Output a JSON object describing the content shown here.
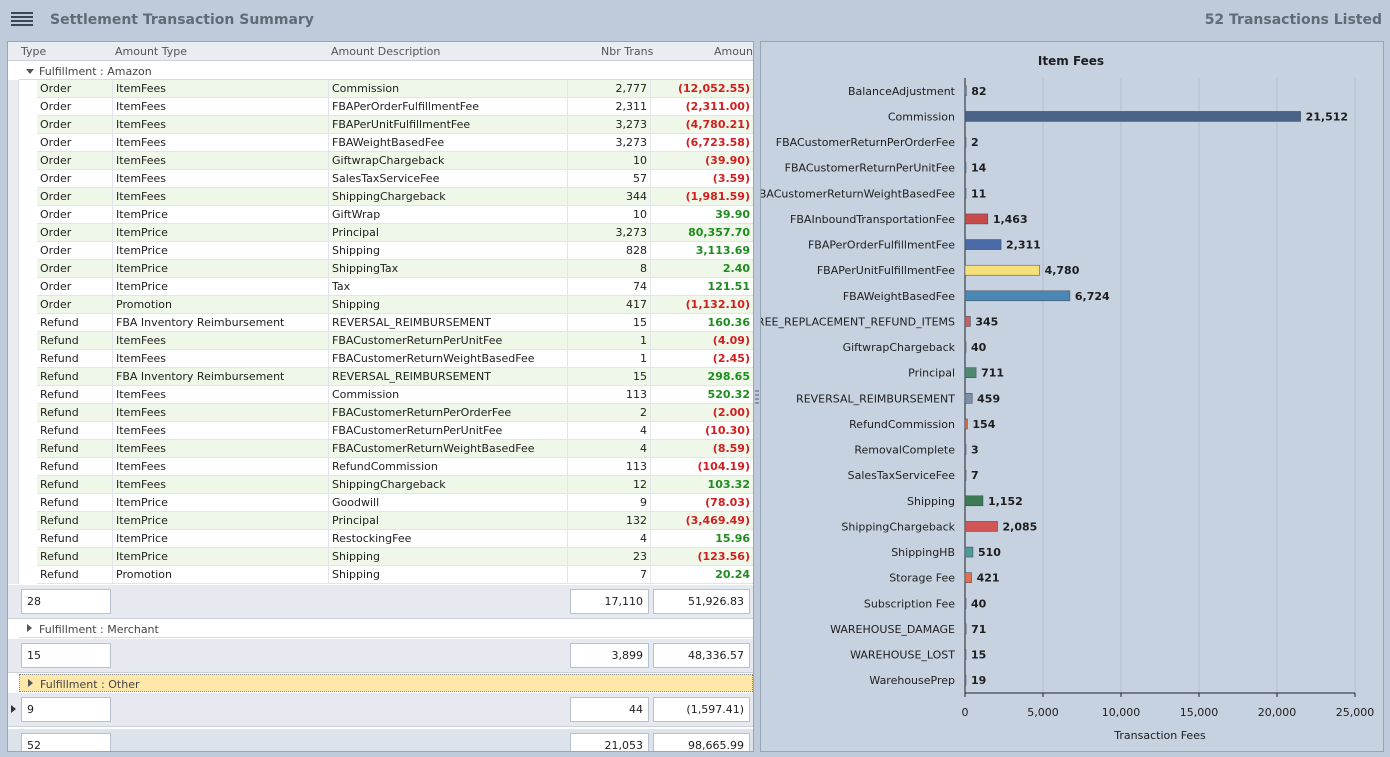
{
  "app": {
    "title": "Settlement Transaction Summary",
    "transactions_listed": "52 Transactions Listed"
  },
  "grid": {
    "columns": {
      "type": "Type",
      "amount_type": "Amount Type",
      "amount_description": "Amount Description",
      "nbr_trans": "Nbr Trans",
      "amount": "Amount"
    },
    "groups": [
      {
        "label": "Fulfillment : Amazon",
        "expanded": true,
        "rows": [
          {
            "type": "Order",
            "amount_type": "ItemFees",
            "description": "Commission",
            "nbr": "2,777",
            "amount": "(12,052.55)"
          },
          {
            "type": "Order",
            "amount_type": "ItemFees",
            "description": "FBAPerOrderFulfillmentFee",
            "nbr": "2,311",
            "amount": "(2,311.00)"
          },
          {
            "type": "Order",
            "amount_type": "ItemFees",
            "description": "FBAPerUnitFulfillmentFee",
            "nbr": "3,273",
            "amount": "(4,780.21)"
          },
          {
            "type": "Order",
            "amount_type": "ItemFees",
            "description": "FBAWeightBasedFee",
            "nbr": "3,273",
            "amount": "(6,723.58)"
          },
          {
            "type": "Order",
            "amount_type": "ItemFees",
            "description": "GiftwrapChargeback",
            "nbr": "10",
            "amount": "(39.90)"
          },
          {
            "type": "Order",
            "amount_type": "ItemFees",
            "description": "SalesTaxServiceFee",
            "nbr": "57",
            "amount": "(3.59)"
          },
          {
            "type": "Order",
            "amount_type": "ItemFees",
            "description": "ShippingChargeback",
            "nbr": "344",
            "amount": "(1,981.59)"
          },
          {
            "type": "Order",
            "amount_type": "ItemPrice",
            "description": "GiftWrap",
            "nbr": "10",
            "amount": "39.90"
          },
          {
            "type": "Order",
            "amount_type": "ItemPrice",
            "description": "Principal",
            "nbr": "3,273",
            "amount": "80,357.70"
          },
          {
            "type": "Order",
            "amount_type": "ItemPrice",
            "description": "Shipping",
            "nbr": "828",
            "amount": "3,113.69"
          },
          {
            "type": "Order",
            "amount_type": "ItemPrice",
            "description": "ShippingTax",
            "nbr": "8",
            "amount": "2.40"
          },
          {
            "type": "Order",
            "amount_type": "ItemPrice",
            "description": "Tax",
            "nbr": "74",
            "amount": "121.51"
          },
          {
            "type": "Order",
            "amount_type": "Promotion",
            "description": "Shipping",
            "nbr": "417",
            "amount": "(1,132.10)"
          },
          {
            "type": "Refund",
            "amount_type": "FBA Inventory Reimbursement",
            "description": "REVERSAL_REIMBURSEMENT",
            "nbr": "15",
            "amount": "160.36"
          },
          {
            "type": "Refund",
            "amount_type": "ItemFees",
            "description": "FBACustomerReturnPerUnitFee",
            "nbr": "1",
            "amount": "(4.09)"
          },
          {
            "type": "Refund",
            "amount_type": "ItemFees",
            "description": "FBACustomerReturnWeightBasedFee",
            "nbr": "1",
            "amount": "(2.45)"
          },
          {
            "type": "Refund",
            "amount_type": "FBA Inventory Reimbursement",
            "description": "REVERSAL_REIMBURSEMENT",
            "nbr": "15",
            "amount": "298.65"
          },
          {
            "type": "Refund",
            "amount_type": "ItemFees",
            "description": "Commission",
            "nbr": "113",
            "amount": "520.32"
          },
          {
            "type": "Refund",
            "amount_type": "ItemFees",
            "description": "FBACustomerReturnPerOrderFee",
            "nbr": "2",
            "amount": "(2.00)"
          },
          {
            "type": "Refund",
            "amount_type": "ItemFees",
            "description": "FBACustomerReturnPerUnitFee",
            "nbr": "4",
            "amount": "(10.30)"
          },
          {
            "type": "Refund",
            "amount_type": "ItemFees",
            "description": "FBACustomerReturnWeightBasedFee",
            "nbr": "4",
            "amount": "(8.59)"
          },
          {
            "type": "Refund",
            "amount_type": "ItemFees",
            "description": "RefundCommission",
            "nbr": "113",
            "amount": "(104.19)"
          },
          {
            "type": "Refund",
            "amount_type": "ItemFees",
            "description": "ShippingChargeback",
            "nbr": "12",
            "amount": "103.32"
          },
          {
            "type": "Refund",
            "amount_type": "ItemPrice",
            "description": "Goodwill",
            "nbr": "9",
            "amount": "(78.03)"
          },
          {
            "type": "Refund",
            "amount_type": "ItemPrice",
            "description": "Principal",
            "nbr": "132",
            "amount": "(3,469.49)"
          },
          {
            "type": "Refund",
            "amount_type": "ItemPrice",
            "description": "RestockingFee",
            "nbr": "4",
            "amount": "15.96"
          },
          {
            "type": "Refund",
            "amount_type": "ItemPrice",
            "description": "Shipping",
            "nbr": "23",
            "amount": "(123.56)"
          },
          {
            "type": "Refund",
            "amount_type": "Promotion",
            "description": "Shipping",
            "nbr": "7",
            "amount": "20.24"
          }
        ],
        "summary": {
          "count": "28",
          "nbr": "17,110",
          "amount": "51,926.83"
        }
      },
      {
        "label": "Fulfillment : Merchant",
        "expanded": false,
        "rows": [],
        "summary": {
          "count": "15",
          "nbr": "3,899",
          "amount": "48,336.57"
        }
      },
      {
        "label": "Fulfillment : Other",
        "expanded": false,
        "focused": true,
        "rows": [],
        "summary": {
          "count": "9",
          "nbr": "44",
          "amount": "(1,597.41)"
        }
      }
    ],
    "grand_total": {
      "count": "52",
      "nbr": "21,053",
      "amount": "98,665.99"
    }
  },
  "colors": {
    "negative": "#d21e1e",
    "positive": "#1e8c1e"
  },
  "chart_data": {
    "type": "bar",
    "orientation": "horizontal",
    "title": "Item Fees",
    "xlabel": "Transaction Fees",
    "ylabel": "",
    "xlim": [
      0,
      25000
    ],
    "xticks": [
      0,
      5000,
      10000,
      15000,
      20000,
      25000
    ],
    "xtick_labels": [
      "0",
      "5,000",
      "10,000",
      "15,000",
      "20,000",
      "25,000"
    ],
    "grid": true,
    "categories": [
      "BalanceAdjustment",
      "Commission",
      "FBACustomerReturnPerOrderFee",
      "FBACustomerReturnPerUnitFee",
      "FBACustomerReturnWeightBasedFee",
      "FBAInboundTransportationFee",
      "FBAPerOrderFulfillmentFee",
      "FBAPerUnitFulfillmentFee",
      "FBAWeightBasedFee",
      "FREE_REPLACEMENT_REFUND_ITEMS",
      "GiftwrapChargeback",
      "Principal",
      "REVERSAL_REIMBURSEMENT",
      "RefundCommission",
      "RemovalComplete",
      "SalesTaxServiceFee",
      "Shipping",
      "ShippingChargeback",
      "ShippingHB",
      "Storage Fee",
      "Subscription Fee",
      "WAREHOUSE_DAMAGE",
      "WAREHOUSE_LOST",
      "WarehousePrep"
    ],
    "values": [
      82,
      21512,
      2,
      14,
      11,
      1463,
      2311,
      4780,
      6724,
      345,
      40,
      711,
      459,
      154,
      3,
      7,
      1152,
      2085,
      510,
      421,
      40,
      71,
      15,
      19
    ],
    "value_labels": [
      "82",
      "21,512",
      "2",
      "14",
      "11",
      "1,463",
      "2,311",
      "4,780",
      "6,724",
      "345",
      "40",
      "711",
      "459",
      "154",
      "3",
      "7",
      "1,152",
      "2,085",
      "510",
      "421",
      "40",
      "71",
      "15",
      "19"
    ],
    "bar_colors": [
      "#7b8fa8",
      "#4a6286",
      "#7b8fa8",
      "#7b8fa8",
      "#7b8fa8",
      "#c84b4b",
      "#4a6aa8",
      "#f5e07a",
      "#4a87b5",
      "#c86060",
      "#7b8fa8",
      "#4f8a70",
      "#7b8fa8",
      "#d8704a",
      "#7b8fa8",
      "#7b8fa8",
      "#3c7a55",
      "#d05555",
      "#4f9a92",
      "#e07050",
      "#7b8fa8",
      "#7b8fa8",
      "#7b8fa8",
      "#7b8fa8"
    ]
  }
}
